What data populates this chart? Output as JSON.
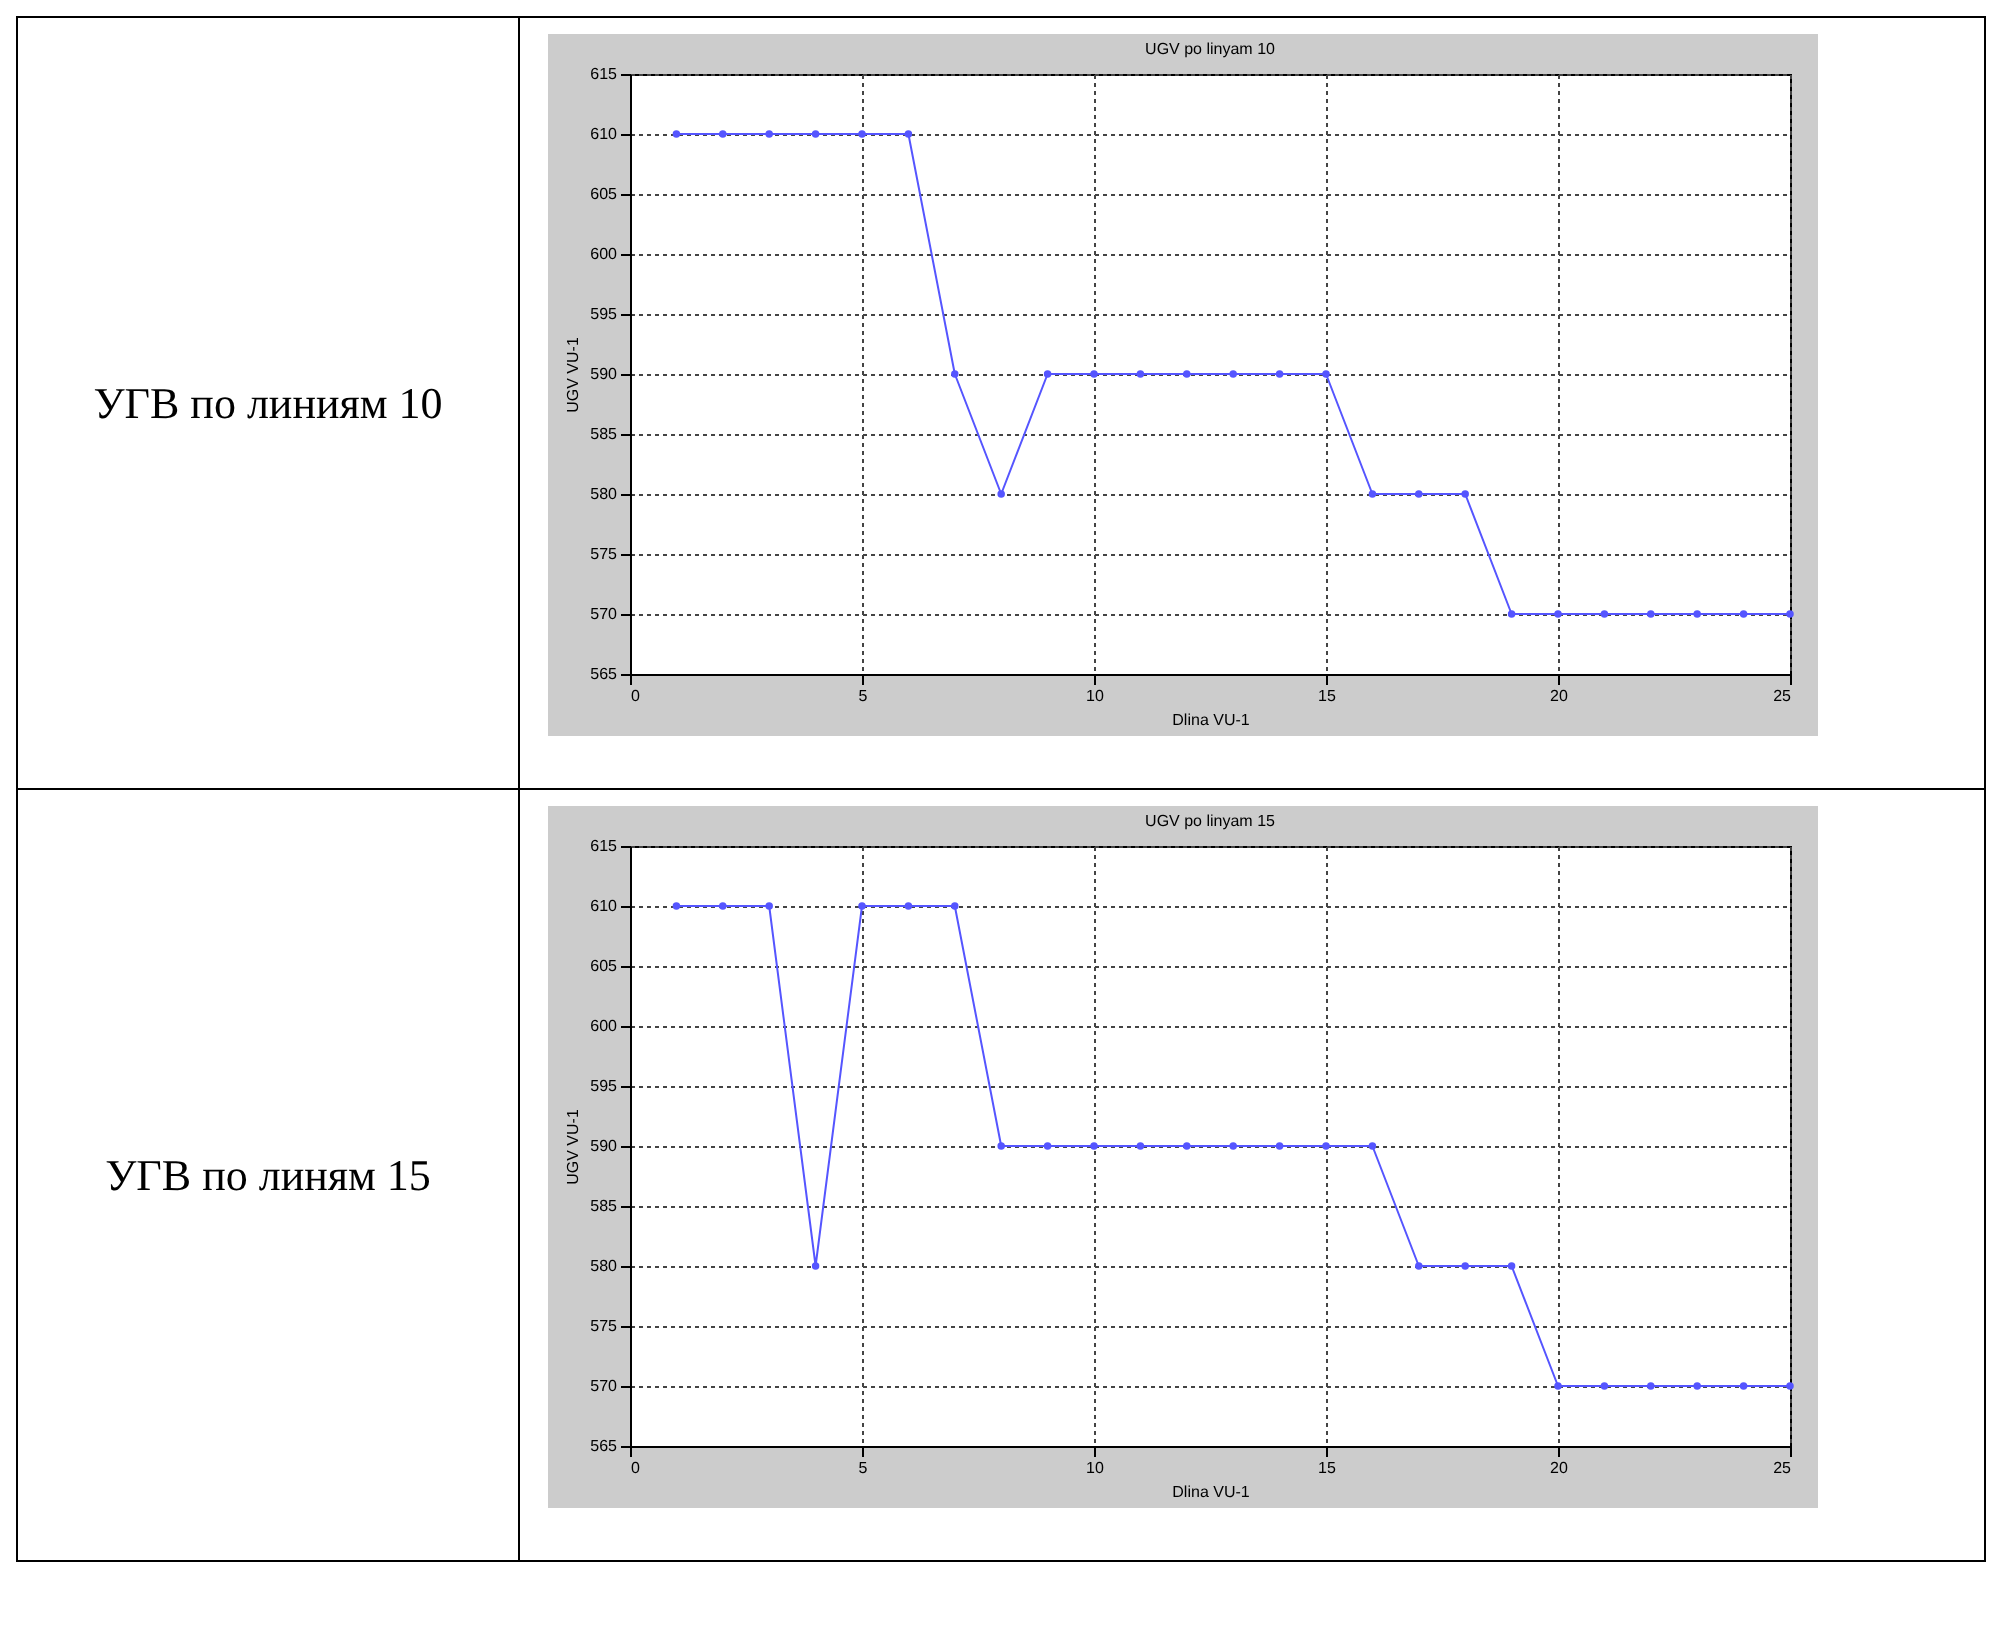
{
  "chart_data": [
    {
      "type": "line",
      "title": "UGV po linyam 10",
      "xlabel": "Dlina VU-1",
      "ylabel": "UGV VU-1",
      "annotations": [
        "УГВ по линиям 10"
      ],
      "x": [
        1,
        2,
        3,
        4,
        5,
        6,
        7,
        8,
        9,
        10,
        11,
        12,
        13,
        14,
        15,
        16,
        17,
        18,
        19,
        20,
        21,
        22,
        23,
        24,
        25
      ],
      "series": [
        {
          "color": "#5555ff",
          "values": [
            610,
            610,
            610,
            610,
            610,
            610,
            590,
            580,
            590,
            590,
            590,
            590,
            590,
            590,
            590,
            580,
            580,
            580,
            570,
            570,
            570,
            570,
            570,
            570,
            570
          ]
        }
      ],
      "xlim": [
        0,
        25
      ],
      "xticks": [
        0,
        5,
        10,
        15,
        20,
        25
      ],
      "ylim": [
        565,
        615
      ],
      "yticks": [
        565,
        570,
        575,
        580,
        585,
        590,
        595,
        600,
        605,
        610,
        615
      ],
      "grid": true,
      "marker": "circle",
      "line_style": "solid"
    },
    {
      "type": "line",
      "title": "UGV po linyam 15",
      "xlabel": "Dlina VU-1",
      "ylabel": "UGV VU-1",
      "annotations": [
        "УГВ по линям 15"
      ],
      "x": [
        1,
        2,
        3,
        4,
        5,
        6,
        7,
        8,
        9,
        10,
        11,
        12,
        13,
        14,
        15,
        16,
        17,
        18,
        19,
        20,
        21,
        22,
        23,
        24,
        25
      ],
      "series": [
        {
          "color": "#5555ff",
          "values": [
            610,
            610,
            610,
            580,
            610,
            610,
            610,
            590,
            590,
            590,
            590,
            590,
            590,
            590,
            590,
            590,
            580,
            580,
            580,
            570,
            570,
            570,
            570,
            570,
            570
          ]
        }
      ],
      "xlim": [
        0,
        25
      ],
      "xticks": [
        0,
        5,
        10,
        15,
        20,
        25
      ],
      "ylim": [
        565,
        615
      ],
      "yticks": [
        565,
        570,
        575,
        580,
        585,
        590,
        595,
        600,
        605,
        610,
        615
      ],
      "grid": true,
      "marker": "circle",
      "line_style": "solid"
    }
  ]
}
